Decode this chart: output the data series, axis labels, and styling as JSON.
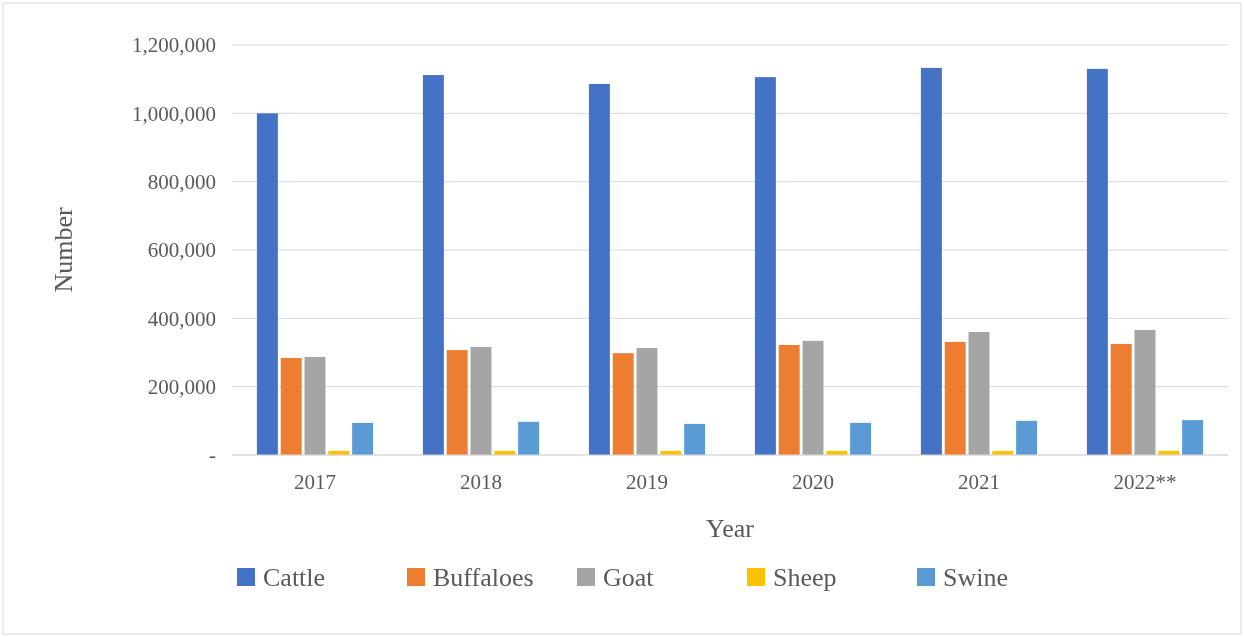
{
  "chart_data": {
    "type": "bar",
    "xlabel": "Year",
    "ylabel": "Number",
    "categories": [
      "2017",
      "2018",
      "2019",
      "2020",
      "2021",
      "2022**"
    ],
    "series": [
      {
        "name": "Cattle",
        "color": "#4472c4",
        "values": [
          1000000,
          1112000,
          1086000,
          1106000,
          1133000,
          1130000
        ]
      },
      {
        "name": "Buffaloes",
        "color": "#ed7d31",
        "values": [
          284000,
          307000,
          298000,
          322000,
          331000,
          325000
        ]
      },
      {
        "name": "Goat",
        "color": "#a5a5a5",
        "values": [
          287000,
          316000,
          313000,
          334000,
          360000,
          366000
        ]
      },
      {
        "name": "Sheep",
        "color": "#ffc000",
        "values": [
          12000,
          12000,
          12000,
          12000,
          12000,
          12000
        ]
      },
      {
        "name": "Swine",
        "color": "#5b9bd5",
        "values": [
          94000,
          97000,
          91000,
          94000,
          100000,
          102000
        ]
      }
    ],
    "ylim": [
      0,
      1200000
    ],
    "yticks": [
      {
        "value": 0,
        "label": "-"
      },
      {
        "value": 200000,
        "label": "200,000"
      },
      {
        "value": 400000,
        "label": "400,000"
      },
      {
        "value": 600000,
        "label": "600,000"
      },
      {
        "value": 800000,
        "label": "800,000"
      },
      {
        "value": 1000000,
        "label": "1,000,000"
      },
      {
        "value": 1200000,
        "label": "1,200,000"
      }
    ],
    "grid": "y",
    "legend": "bottom"
  }
}
